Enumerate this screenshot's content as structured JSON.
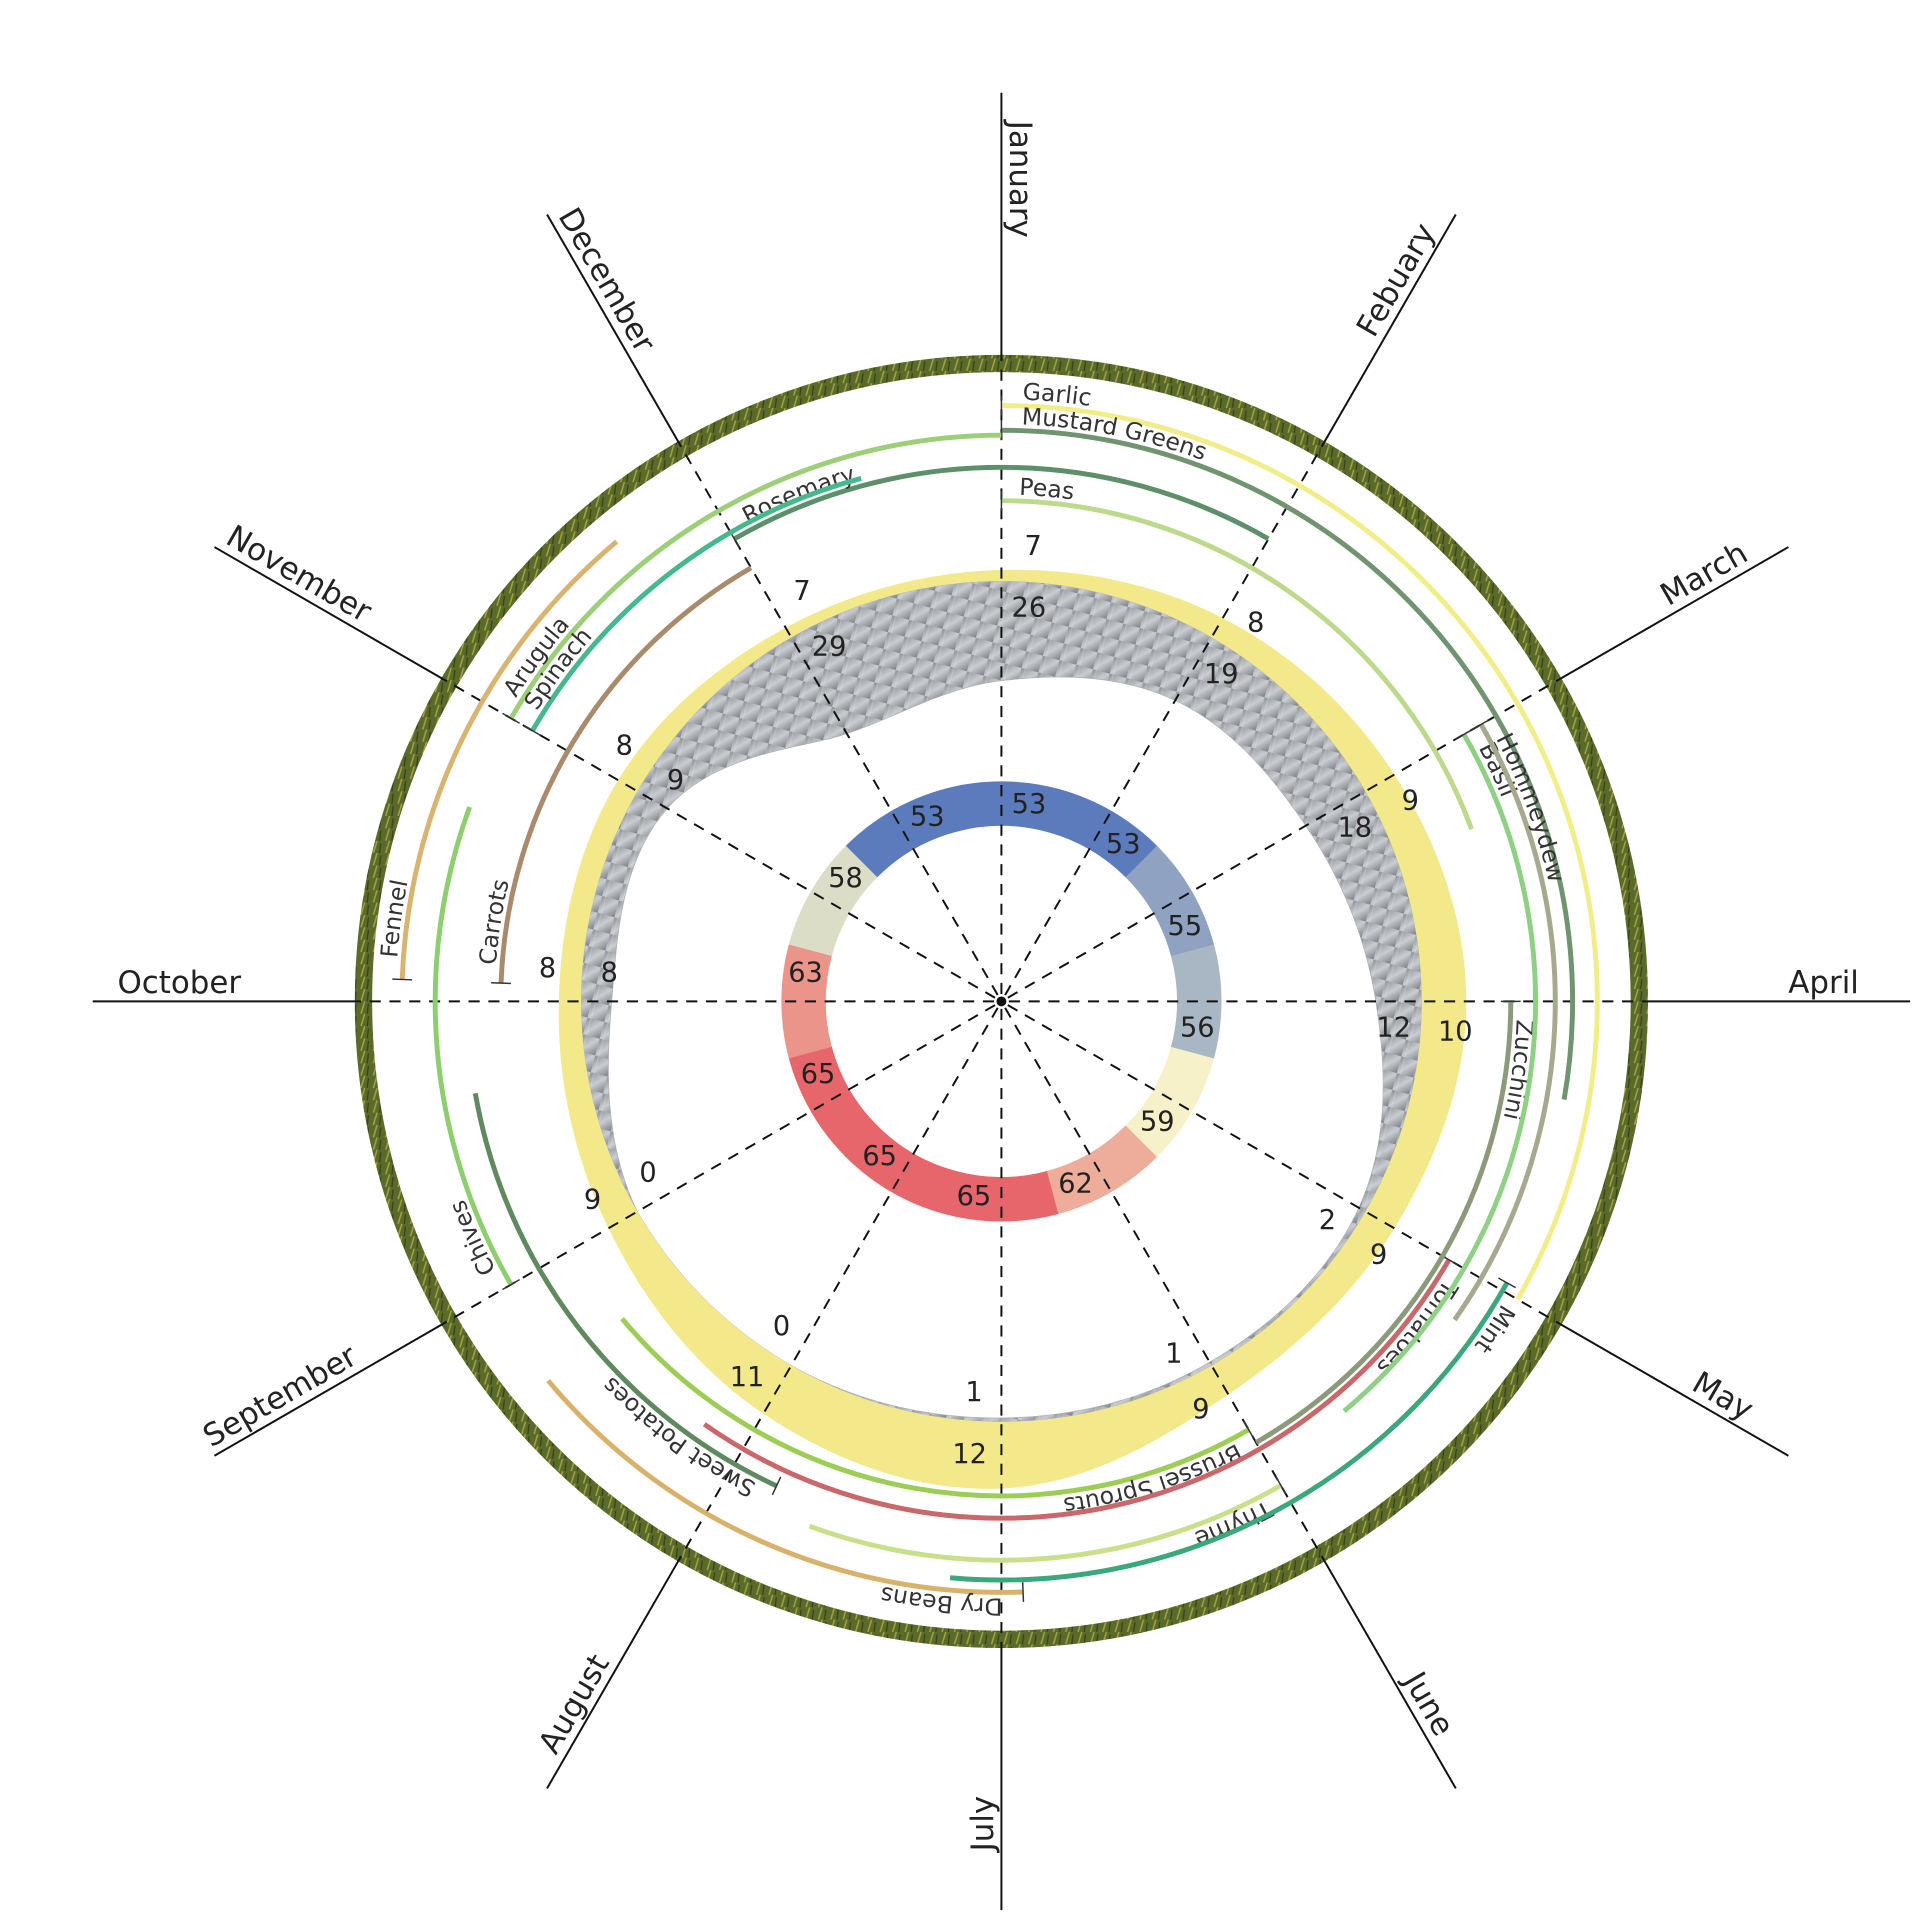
{
  "chart_data": {
    "type": "radial",
    "categories": [
      "January",
      "Febuary",
      "March",
      "April",
      "May",
      "June",
      "July",
      "August",
      "September",
      "October",
      "November",
      "December"
    ],
    "inner_ring": {
      "values": [
        53,
        53,
        55,
        56,
        59,
        62,
        65,
        65,
        65,
        63,
        58,
        53
      ],
      "colors": [
        "#5b7bbd",
        "#f6f1c9",
        "#e6666b"
      ]
    },
    "gray_band": {
      "values": [
        26,
        19,
        18,
        12,
        2,
        1,
        1,
        0,
        0,
        8,
        9,
        29
      ],
      "color": "#a9adb2"
    },
    "yellow_band": {
      "values": [
        7,
        8,
        9,
        10,
        9,
        9,
        12,
        11,
        9,
        8,
        8,
        7
      ],
      "color": "#f3e98a"
    },
    "crops": [
      {
        "name": "Garlic",
        "color": "#f1ee8a",
        "season": [
          0,
          4
        ]
      },
      {
        "name": "Mustard Greens",
        "color": "#6f946f",
        "season": [
          0,
          3.33
        ]
      },
      {
        "name": "Peas",
        "color": "#bcd98c",
        "season": [
          0,
          2.33
        ]
      },
      {
        "name": "Rosemary",
        "color": "#5c8f6a",
        "season": [
          11,
          1
        ]
      },
      {
        "name": "Arugula",
        "color": "#9dce78",
        "season": [
          10,
          12
        ]
      },
      {
        "name": "Spinach",
        "color": "#45b98c",
        "season": [
          10,
          11.5
        ]
      },
      {
        "name": "Carrots",
        "color": "#a98b6c",
        "season": [
          9.07,
          11
        ]
      },
      {
        "name": "Fennel",
        "color": "#d8b470",
        "season": [
          9.07,
          10.67
        ]
      },
      {
        "name": "Chives",
        "color": "#8dcf6e",
        "season": [
          8,
          9.67
        ]
      },
      {
        "name": "Sweet Potatoes",
        "color": "#5e8a5e",
        "season": [
          6.83,
          8.67
        ]
      },
      {
        "name": "Dry Beans",
        "color": "#d8b26a",
        "season": [
          5.93,
          7.67
        ]
      },
      {
        "name": "Brussel Sprouts",
        "color": "#9ccd55",
        "season": [
          5,
          7.67
        ]
      },
      {
        "name": "Thyme",
        "color": "#c8e08a",
        "season": [
          5,
          6.67
        ]
      },
      {
        "name": "Tomatoes",
        "color": "#c9676a",
        "season": [
          4,
          7.17
        ]
      },
      {
        "name": "Mint",
        "color": "#3aa87a",
        "season": [
          3.97,
          6.17
        ]
      },
      {
        "name": "Zucchini",
        "color": "#8a9a7a",
        "season": [
          3,
          5
        ]
      },
      {
        "name": "Basil",
        "color": "#8fd184",
        "season": [
          2,
          4.67
        ]
      },
      {
        "name": "Hommeydew",
        "color": "#a8a88e",
        "season": [
          2,
          4.17
        ]
      }
    ]
  }
}
